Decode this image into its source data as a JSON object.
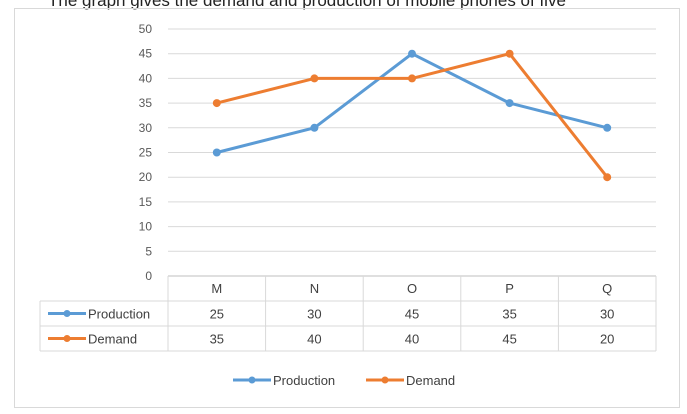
{
  "caption": "The graph gives the demand and production of mobile phones of five",
  "chart_data": {
    "type": "line",
    "categories": [
      "M",
      "N",
      "O",
      "P",
      "Q"
    ],
    "series": [
      {
        "name": "Production",
        "values": [
          25,
          30,
          45,
          35,
          30
        ],
        "color": "#5b9bd5"
      },
      {
        "name": "Demand",
        "values": [
          35,
          40,
          40,
          45,
          20
        ],
        "color": "#ed7d31"
      }
    ],
    "ylim": [
      0,
      50
    ],
    "yticks": [
      0,
      5,
      10,
      15,
      20,
      25,
      30,
      35,
      40,
      45,
      50
    ],
    "grid": true,
    "data_table": true,
    "legend_position": "bottom",
    "title": "",
    "xlabel": "",
    "ylabel": ""
  }
}
